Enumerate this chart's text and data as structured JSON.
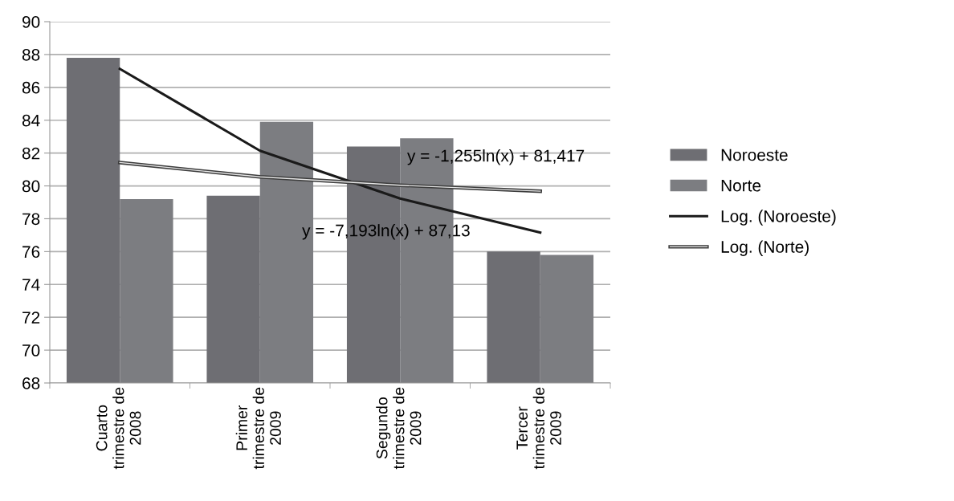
{
  "chart_data": {
    "type": "bar",
    "categories": [
      "Cuarto\ntrimestre de\n2008",
      "Primer\ntrimestre de\n2009",
      "Segundo\ntrimestre de\n2009",
      "Tercer\ntrimestre de\n2009"
    ],
    "series": [
      {
        "name": "Noroeste",
        "color": "#6e6e73",
        "values": [
          87.8,
          79.4,
          82.4,
          76.0
        ]
      },
      {
        "name": "Norte",
        "color": "#7c7d81",
        "values": [
          79.2,
          83.9,
          82.9,
          75.8
        ]
      },
      {
        "name": "Log. (Noroeste)",
        "type": "line",
        "color": "#1a1a1a",
        "values": [
          87.13,
          82.14,
          79.23,
          77.16
        ]
      },
      {
        "name": "Log. (Norte)",
        "type": "line",
        "color": "#3c3c3c",
        "values": [
          81.42,
          80.55,
          80.04,
          79.68
        ]
      }
    ],
    "ylim": [
      68,
      90
    ],
    "yticks": [
      68,
      70,
      72,
      74,
      76,
      78,
      80,
      82,
      84,
      86,
      88,
      90
    ],
    "grid": "y",
    "legend": "right",
    "marker": "none",
    "annotations": [
      "y = -1,255ln(x) + 81,417",
      "y = -7,193ln(x) + 87,13"
    ]
  }
}
